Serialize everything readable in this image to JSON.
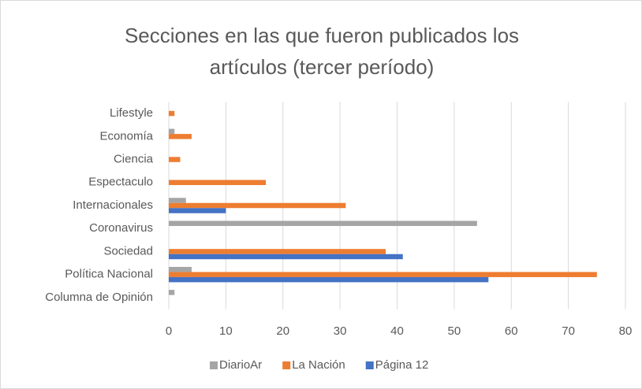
{
  "chart_data": {
    "type": "barh",
    "title": "Secciones en las que fueron publicados los artículos (tercer período)",
    "categories": [
      "Columna de Opinión",
      "Política Nacional",
      "Sociedad",
      "Coronavirus",
      "Internacionales",
      "Espectaculo",
      "Ciencia",
      "Economía",
      "Lifestyle"
    ],
    "series": [
      {
        "name": "DiarioAr",
        "color": "#a5a5a5",
        "values": [
          1,
          4,
          0,
          54,
          3,
          0,
          0,
          1,
          0
        ]
      },
      {
        "name": "La Nación",
        "color": "#ed7d31",
        "values": [
          0,
          75,
          38,
          0,
          31,
          17,
          2,
          4,
          1
        ]
      },
      {
        "name": "Página 12",
        "color": "#4472c4",
        "values": [
          0,
          56,
          41,
          0,
          10,
          0,
          0,
          0,
          0
        ]
      }
    ],
    "xlim": [
      0,
      80
    ],
    "xticks": [
      0,
      10,
      20,
      30,
      40,
      50,
      60,
      70,
      80
    ],
    "grid": true,
    "legend": "bottom"
  }
}
